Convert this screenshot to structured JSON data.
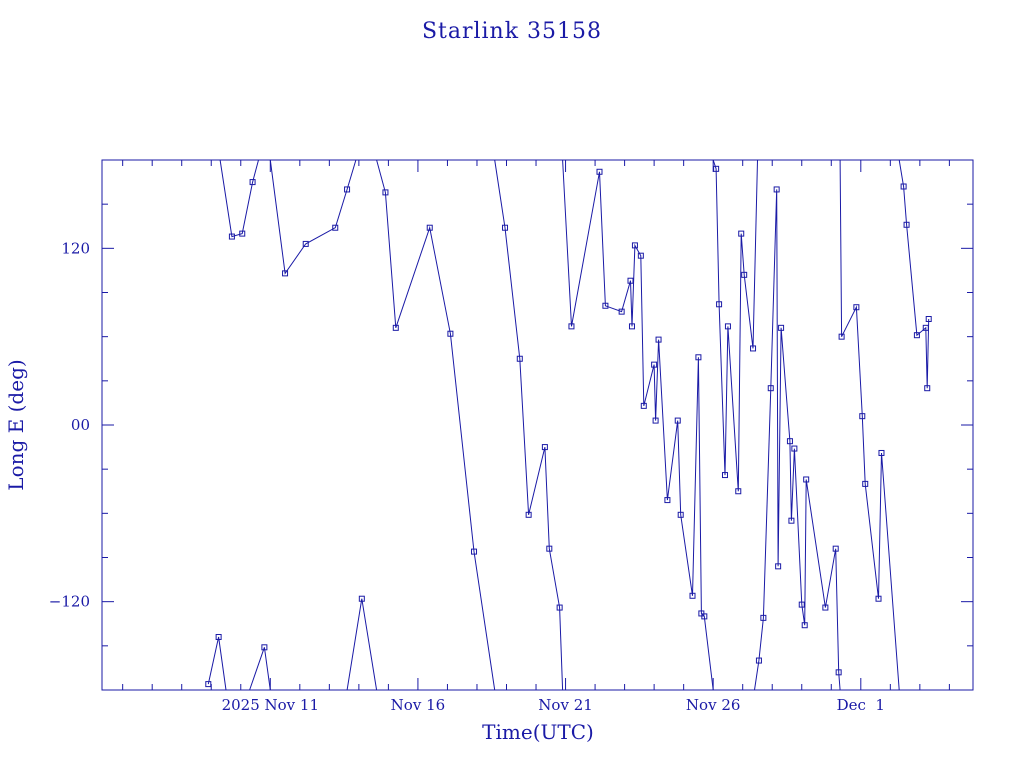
{
  "chart_data": {
    "type": "line",
    "title": "Starlink 35158",
    "xlabel": "Time(UTC)",
    "ylabel": "Long E (deg)",
    "x_unit": "days (Nov 2025; Dec 1 = 31)",
    "xlim": [
      5.3,
      34.8
    ],
    "ylim": [
      -180,
      180
    ],
    "x_ticks": [
      {
        "value": 11,
        "label": "2025 Nov 11"
      },
      {
        "value": 16,
        "label": "Nov 16"
      },
      {
        "value": 21,
        "label": "Nov 21"
      },
      {
        "value": 26,
        "label": "Nov 26"
      },
      {
        "value": 31,
        "label": "Dec  1"
      }
    ],
    "y_ticks": [
      {
        "value": 120,
        "label": "120"
      },
      {
        "value": 0,
        "label": "00"
      },
      {
        "value": -120,
        "label": "−120"
      }
    ],
    "color": "#1a1aa6",
    "series": [
      {
        "points": [
          [
            8.9,
            -176
          ],
          [
            9.25,
            -144
          ],
          [
            9.5,
            -180
          ]
        ]
      },
      {
        "points": [
          [
            9.3,
            180
          ],
          [
            9.7,
            128
          ],
          [
            10.05,
            130
          ],
          [
            10.4,
            165
          ],
          [
            10.6,
            180
          ]
        ]
      },
      {
        "points": [
          [
            10.3,
            -180
          ],
          [
            10.8,
            -151
          ],
          [
            11.0,
            -180
          ]
        ]
      },
      {
        "points": [
          [
            11.0,
            180
          ],
          [
            11.5,
            103
          ],
          [
            12.2,
            123
          ],
          [
            13.2,
            134
          ],
          [
            13.6,
            160
          ],
          [
            13.9,
            180
          ]
        ]
      },
      {
        "points": [
          [
            13.6,
            -180
          ],
          [
            14.1,
            -118
          ],
          [
            14.6,
            -180
          ]
        ]
      },
      {
        "points": [
          [
            14.6,
            180
          ],
          [
            14.9,
            158
          ],
          [
            15.25,
            66
          ],
          [
            16.4,
            134
          ],
          [
            17.1,
            62
          ],
          [
            17.9,
            -86
          ],
          [
            18.6,
            -180
          ]
        ]
      },
      {
        "points": [
          [
            18.6,
            180
          ],
          [
            18.95,
            134
          ],
          [
            19.45,
            45
          ],
          [
            19.75,
            -61
          ],
          [
            20.3,
            -15
          ],
          [
            20.45,
            -84
          ],
          [
            20.8,
            -124
          ],
          [
            20.9,
            -180
          ]
        ]
      },
      {
        "points": [
          [
            20.9,
            180
          ],
          [
            21.2,
            67
          ],
          [
            22.15,
            172
          ],
          [
            22.35,
            81
          ],
          [
            22.9,
            77
          ],
          [
            23.2,
            98
          ],
          [
            23.25,
            67
          ],
          [
            23.35,
            122
          ],
          [
            23.55,
            115
          ],
          [
            23.65,
            13
          ],
          [
            24.0,
            41
          ],
          [
            24.05,
            3
          ],
          [
            24.15,
            58
          ],
          [
            24.45,
            -51
          ],
          [
            24.8,
            3
          ],
          [
            24.9,
            -61
          ],
          [
            25.3,
            -116
          ],
          [
            25.5,
            46
          ],
          [
            25.6,
            -128
          ],
          [
            25.7,
            -130
          ],
          [
            26.0,
            -180
          ]
        ]
      },
      {
        "points": [
          [
            26.0,
            180
          ],
          [
            26.1,
            174
          ],
          [
            26.2,
            82
          ],
          [
            26.4,
            -34
          ],
          [
            26.5,
            67
          ],
          [
            26.85,
            -45
          ],
          [
            26.95,
            130
          ],
          [
            27.05,
            102
          ],
          [
            27.35,
            52
          ],
          [
            27.5,
            180
          ]
        ]
      },
      {
        "points": [
          [
            27.4,
            -180
          ],
          [
            27.55,
            -160
          ],
          [
            27.7,
            -131
          ],
          [
            27.95,
            25
          ],
          [
            28.15,
            160
          ],
          [
            28.2,
            -96
          ],
          [
            28.3,
            66
          ],
          [
            28.6,
            -11
          ],
          [
            28.65,
            -65
          ],
          [
            28.75,
            -16
          ],
          [
            29.0,
            -122
          ],
          [
            29.1,
            -136
          ],
          [
            29.15,
            -37
          ],
          [
            29.8,
            -124
          ],
          [
            30.15,
            -84
          ],
          [
            30.25,
            -168
          ],
          [
            30.3,
            -180
          ]
        ]
      },
      {
        "points": [
          [
            30.3,
            180
          ],
          [
            30.35,
            60
          ],
          [
            30.85,
            80
          ],
          [
            31.05,
            6
          ],
          [
            31.15,
            -40
          ],
          [
            31.6,
            -118
          ],
          [
            31.7,
            -19
          ],
          [
            32.3,
            -180
          ]
        ]
      },
      {
        "points": [
          [
            32.3,
            180
          ],
          [
            32.45,
            162
          ],
          [
            32.55,
            136
          ],
          [
            32.9,
            61
          ],
          [
            33.2,
            66
          ],
          [
            33.25,
            25
          ],
          [
            33.3,
            72
          ]
        ]
      }
    ]
  }
}
